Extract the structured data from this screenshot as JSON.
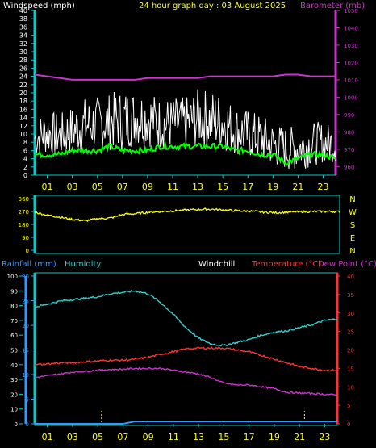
{
  "header": {
    "left_label": "Windspeed (mph)",
    "center_label": "24 hour graph day : 03 August 2025",
    "right_label": "Barometer (mb)"
  },
  "colors": {
    "background": "#000000",
    "wind": "#ffffff",
    "gust_avg": "#00ff00",
    "barometer": "#cc33cc",
    "yellow": "#ffff00",
    "cyan": "#00cccc",
    "humidity": "#33cccc",
    "temperature": "#ff3333",
    "dewpoint": "#cc33cc",
    "rain": "#3399ff"
  },
  "time_axis": {
    "hours": [
      "01",
      "03",
      "05",
      "07",
      "09",
      "11",
      "13",
      "15",
      "17",
      "19",
      "21",
      "23"
    ]
  },
  "chart_data": [
    {
      "type": "line",
      "panel": "wind-barometer",
      "left_axis": {
        "label": "Windspeed (mph)",
        "ticks": [
          0,
          2,
          4,
          6,
          8,
          10,
          12,
          14,
          16,
          18,
          20,
          22,
          24,
          26,
          28,
          30,
          32,
          34,
          36,
          38,
          40
        ],
        "ylim": [
          0,
          40
        ]
      },
      "right_axis": {
        "label": "Barometer (mb)",
        "ticks": [
          960,
          970,
          980,
          990,
          1000,
          1010,
          1020,
          1030,
          1040,
          1050
        ],
        "ylim": [
          955,
          1050
        ]
      },
      "x": [
        0,
        1,
        2,
        3,
        4,
        5,
        6,
        7,
        8,
        9,
        10,
        11,
        12,
        13,
        14,
        15,
        16,
        17,
        18,
        19,
        20,
        21,
        22,
        23,
        24
      ],
      "series": [
        {
          "key": "wind_high",
          "values": [
            14,
            16,
            15,
            17,
            19,
            19,
            20,
            21,
            21,
            21,
            19,
            19,
            19,
            21,
            21,
            20,
            17,
            16,
            15,
            13,
            12,
            12,
            13,
            13,
            12
          ]
        },
        {
          "key": "wind_low",
          "values": [
            4,
            5,
            4,
            5,
            5,
            6,
            6,
            6,
            7,
            7,
            6,
            6,
            6,
            7,
            6,
            6,
            5,
            4,
            3,
            2,
            1,
            1,
            2,
            3,
            3
          ]
        },
        {
          "key": "wind_avg",
          "values": [
            5,
            5,
            5,
            6,
            6,
            6,
            7,
            6,
            6,
            6,
            7,
            7,
            7,
            7,
            7,
            7,
            6,
            6,
            5,
            5,
            3,
            4,
            5,
            5,
            4
          ]
        },
        {
          "key": "barometer",
          "values": [
            1013,
            1012,
            1011,
            1010,
            1010,
            1010,
            1010,
            1010,
            1010,
            1011,
            1011,
            1011,
            1011,
            1011,
            1012,
            1012,
            1012,
            1012,
            1012,
            1012,
            1013,
            1013,
            1012,
            1012,
            1012
          ]
        }
      ]
    },
    {
      "type": "line",
      "panel": "wind-direction",
      "left_axis": {
        "ticks": [
          360,
          270,
          180,
          90,
          0
        ],
        "ylim": [
          0,
          360
        ]
      },
      "compass": [
        "N",
        "W",
        "S",
        "E",
        "N"
      ],
      "x": [
        0,
        1,
        2,
        3,
        4,
        5,
        6,
        7,
        8,
        9,
        10,
        11,
        12,
        13,
        14,
        15,
        16,
        17,
        18,
        19,
        20,
        21,
        22,
        23,
        24
      ],
      "series": [
        {
          "key": "direction",
          "values": [
            265,
            245,
            230,
            215,
            205,
            220,
            225,
            250,
            255,
            265,
            270,
            275,
            280,
            285,
            285,
            280,
            275,
            272,
            265,
            262,
            265,
            268,
            270,
            270,
            268
          ]
        }
      ]
    },
    {
      "type": "line",
      "panel": "temperature-humidity",
      "header": {
        "rainfall_label": "Rainfall (mm)",
        "humidity_label": "Humidity",
        "windchill_label": "Windchill",
        "temperature_label": "Temperature (°C)",
        "dewpoint_label": "Dew Point (°C)"
      },
      "humidity_axis": {
        "ticks": [
          0,
          10,
          20,
          30,
          40,
          50,
          60,
          70,
          80,
          90,
          100
        ],
        "ylim": [
          0,
          100
        ]
      },
      "rain_axis": {
        "ticks": [
          0,
          5,
          10,
          15,
          20,
          25,
          30
        ],
        "ylim": [
          0,
          30
        ]
      },
      "temp_axis": {
        "ticks": [
          0,
          5,
          10,
          15,
          20,
          25,
          30,
          35,
          40
        ],
        "ylim": [
          0,
          40
        ]
      },
      "x": [
        0,
        1,
        2,
        3,
        4,
        5,
        6,
        7,
        8,
        9,
        10,
        11,
        12,
        13,
        14,
        15,
        16,
        17,
        18,
        19,
        20,
        21,
        22,
        23,
        24
      ],
      "series": [
        {
          "key": "humidity",
          "values": [
            79,
            81,
            83,
            84,
            85,
            86,
            88,
            89,
            90,
            88,
            82,
            74,
            65,
            58,
            54,
            53,
            55,
            57,
            60,
            62,
            63,
            65,
            67,
            70,
            71
          ]
        },
        {
          "key": "temperature",
          "values": [
            16,
            16.2,
            16.5,
            16.5,
            16.8,
            17,
            17.2,
            17.2,
            17.5,
            18,
            18.8,
            19.5,
            20.3,
            20.5,
            20.5,
            20.5,
            20,
            19.5,
            18.5,
            17.5,
            16.5,
            15.5,
            15,
            14.5,
            14.5
          ]
        },
        {
          "key": "dewpoint",
          "values": [
            12.5,
            13,
            13.5,
            14,
            14.2,
            14.5,
            14.7,
            14.8,
            15,
            15,
            15,
            14.5,
            14,
            13.5,
            12.5,
            11,
            10.5,
            10.5,
            10,
            9.5,
            8.5,
            8.3,
            8.2,
            8,
            7.8
          ]
        },
        {
          "key": "rainfall",
          "values": [
            0,
            0,
            0,
            0,
            0,
            0,
            0,
            0,
            0.5,
            0.5,
            0.5,
            0.5,
            0.5,
            0.5,
            0.5,
            0.5,
            0.5,
            0.5,
            0.5,
            0.5,
            0.5,
            0.5,
            0.5,
            0.5,
            0.5
          ]
        }
      ],
      "markers_hours": [
        5.3,
        21.4
      ]
    }
  ]
}
